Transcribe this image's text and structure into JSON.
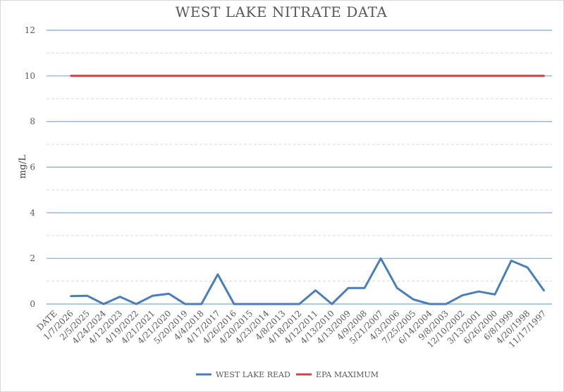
{
  "chart_data": {
    "type": "line",
    "title": "WEST LAKE NITRATE DATA",
    "xlabel": "",
    "ylabel": "mg/L",
    "ylim": [
      0,
      12
    ],
    "yticks": [
      0,
      2,
      4,
      6,
      8,
      10,
      12
    ],
    "grid": true,
    "legend_position": "bottom",
    "categories": [
      "DATE",
      "1/7/2026",
      "2/5/2025",
      "4/24/2024",
      "4/12/2023",
      "4/19/2022",
      "4/21/2021",
      "4/21/2020",
      "5/20/2019",
      "4/4/2018",
      "4/17/2017",
      "4/26/2016",
      "4/20/2015",
      "4/23/2014",
      "4/8/2013",
      "4/18/2012",
      "4/12/2011",
      "4/13/2010",
      "4/13/2009",
      "4/9/2008",
      "5/21/2007",
      "4/3/2006",
      "7/25/2005",
      "6/14/2004",
      "9/8/2003",
      "12/10/2002",
      "3/13/2001",
      "6/26/2000",
      "6/8/1999",
      "4/20/1998",
      "11/17/1997"
    ],
    "series": [
      {
        "name": "WEST LAKE READ",
        "color": "#4a7ebb",
        "values": [
          null,
          0.35,
          0.36,
          0.0,
          0.32,
          0.0,
          0.36,
          0.45,
          0.0,
          0.0,
          1.3,
          0.0,
          0.0,
          0.0,
          0.0,
          0.0,
          0.6,
          0.0,
          0.7,
          0.7,
          2.0,
          0.7,
          0.2,
          0.0,
          0.0,
          0.38,
          0.55,
          0.42,
          1.9,
          1.6,
          0.6
        ]
      },
      {
        "name": "EPA MAXIMUM",
        "color": "#be4b48",
        "values": [
          null,
          10,
          10,
          10,
          10,
          10,
          10,
          10,
          10,
          10,
          10,
          10,
          10,
          10,
          10,
          10,
          10,
          10,
          10,
          10,
          10,
          10,
          10,
          10,
          10,
          10,
          10,
          10,
          10,
          10,
          10
        ]
      }
    ]
  }
}
